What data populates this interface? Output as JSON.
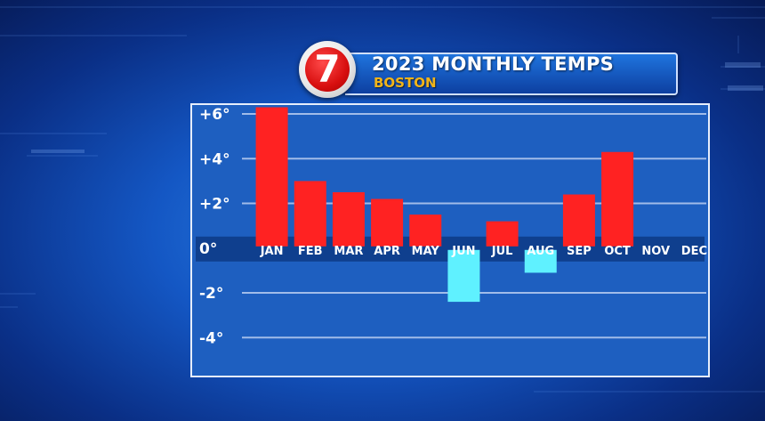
{
  "header": {
    "logo_text": "7",
    "title": "2023 MONTHLY TEMPS",
    "subtitle": "BOSTON"
  },
  "colors": {
    "positive_bar": "#ff2222",
    "negative_bar": "#5ff1ff",
    "plot_background": "#1e5fc0",
    "gridline": "#b9cdf0",
    "subtitle": "#f2b418"
  },
  "chart_data": {
    "type": "bar",
    "title": "2023 MONTHLY TEMPS",
    "subtitle": "BOSTON",
    "categories": [
      "JAN",
      "FEB",
      "MAR",
      "APR",
      "MAY",
      "JUN",
      "JUL",
      "AUG",
      "SEP",
      "OCT",
      "NOV",
      "DEC"
    ],
    "values": [
      6.3,
      3.0,
      2.5,
      2.2,
      1.5,
      -2.4,
      1.2,
      -1.1,
      2.4,
      4.3,
      null,
      null
    ],
    "yticks": [
      {
        "value": 6,
        "label": "+6°"
      },
      {
        "value": 4,
        "label": "+4°"
      },
      {
        "value": 2,
        "label": "+2°"
      },
      {
        "value": 0,
        "label": "0°"
      },
      {
        "value": -2,
        "label": "-2°"
      },
      {
        "value": -4,
        "label": "-4°"
      }
    ],
    "ylim": [
      -5.7,
      6.4
    ],
    "grid": true,
    "legend": "none"
  }
}
